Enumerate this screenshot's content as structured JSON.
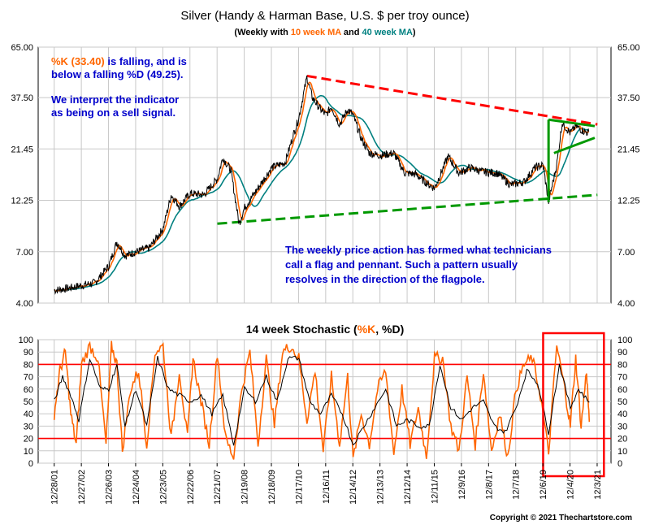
{
  "chart_data": [
    {
      "type": "line",
      "title": "Silver (Handy & Harman Base, U.S. $ per troy ounce)",
      "subtitle": {
        "prefix": "(Weekly with ",
        "ma10": "10 week MA",
        "mid": " and ",
        "ma40": "40 week MA",
        "suffix": ")"
      },
      "scale": "log",
      "ylim": [
        4.0,
        65.0
      ],
      "y_ticks": [
        "65.00",
        "37.50",
        "21.45",
        "12.25",
        "7.00",
        "4.00"
      ],
      "y_tick_values": [
        65.0,
        37.5,
        21.45,
        12.25,
        7.0,
        4.0
      ],
      "grid": true,
      "series": [
        {
          "name": "",
          "role": "price",
          "color": "#000000"
        },
        {
          "name": "10 week MA",
          "role": "ma10",
          "color": "#ff6600"
        },
        {
          "name": "40 week MA",
          "role": "ma40",
          "color": "#008080"
        }
      ],
      "price_path": [
        [
          2001.99,
          4.6
        ],
        [
          2002.5,
          4.7
        ],
        [
          2003.0,
          4.85
        ],
        [
          2003.5,
          5.0
        ],
        [
          2004.0,
          6.0
        ],
        [
          2004.3,
          7.8
        ],
        [
          2004.6,
          6.7
        ],
        [
          2005.0,
          7.0
        ],
        [
          2005.5,
          7.3
        ],
        [
          2006.0,
          9.0
        ],
        [
          2006.3,
          13.0
        ],
        [
          2006.6,
          11.5
        ],
        [
          2007.0,
          13.2
        ],
        [
          2007.5,
          13.0
        ],
        [
          2008.0,
          15.5
        ],
        [
          2008.2,
          19.5
        ],
        [
          2008.5,
          17.0
        ],
        [
          2008.8,
          9.5
        ],
        [
          2009.0,
          11.3
        ],
        [
          2009.5,
          14.0
        ],
        [
          2010.0,
          17.5
        ],
        [
          2010.5,
          18.5
        ],
        [
          2010.8,
          25.0
        ],
        [
          2011.0,
          30.0
        ],
        [
          2011.3,
          47.0
        ],
        [
          2011.5,
          37.5
        ],
        [
          2011.8,
          33.0
        ],
        [
          2012.0,
          31.0
        ],
        [
          2012.2,
          34.0
        ],
        [
          2012.5,
          28.0
        ],
        [
          2012.8,
          33.0
        ],
        [
          2013.0,
          31.0
        ],
        [
          2013.3,
          24.0
        ],
        [
          2013.6,
          20.5
        ],
        [
          2014.0,
          20.0
        ],
        [
          2014.5,
          20.5
        ],
        [
          2014.9,
          16.5
        ],
        [
          2015.3,
          16.3
        ],
        [
          2015.8,
          14.5
        ],
        [
          2016.0,
          14.0
        ],
        [
          2016.5,
          19.8
        ],
        [
          2016.9,
          16.5
        ],
        [
          2017.3,
          17.5
        ],
        [
          2017.8,
          16.7
        ],
        [
          2018.3,
          16.5
        ],
        [
          2018.8,
          14.5
        ],
        [
          2019.3,
          15.0
        ],
        [
          2019.7,
          17.5
        ],
        [
          2020.0,
          18.0
        ],
        [
          2020.2,
          12.0
        ],
        [
          2020.5,
          18.0
        ],
        [
          2020.7,
          28.5
        ],
        [
          2021.0,
          25.5
        ],
        [
          2021.2,
          27.5
        ],
        [
          2021.5,
          26.0
        ],
        [
          2021.7,
          25.5
        ]
      ],
      "trendlines": [
        {
          "name": "upper-resistance",
          "color": "#ff0000",
          "points": [
            [
              2011.3,
              47.5
            ],
            [
              2022.0,
              28.0
            ]
          ]
        },
        {
          "name": "lower-support",
          "color": "#009900",
          "points": [
            [
              2008.0,
              9.5
            ],
            [
              2022.0,
              13.0
            ]
          ]
        }
      ],
      "pattern": {
        "flagpole": [
          [
            2020.2,
            12.0
          ],
          [
            2020.2,
            29.5
          ]
        ],
        "pennant_upper": [
          [
            2020.2,
            29.5
          ],
          [
            2021.9,
            27.5
          ]
        ],
        "pennant_lower": [
          [
            2020.4,
            20.5
          ],
          [
            2021.9,
            24.2
          ]
        ]
      },
      "annotations": [
        {
          "role": "k",
          "color": "#ff6600",
          "text": "%K (33.40) "
        },
        {
          "role": "k_rest",
          "color": "#0000cc",
          "text": "is falling, and is"
        },
        {
          "role": "k2",
          "color": "#0000cc",
          "text": "below a falling %D (49.25)."
        },
        {
          "role": "i1",
          "color": "#0000cc",
          "text": "We interpret the indicator"
        },
        {
          "role": "i2",
          "color": "#0000cc",
          "text": "as being on a sell signal."
        },
        {
          "role": "f1",
          "color": "#0000cc",
          "text": "The weekly price action has formed what technicians"
        },
        {
          "role": "f2",
          "color": "#0000cc",
          "text": "call a flag and pennant.  Such a pattern usually"
        },
        {
          "role": "f3",
          "color": "#0000cc",
          "text": "resolves in the direction of the flagpole."
        }
      ]
    },
    {
      "type": "line",
      "title": {
        "prefix": "14 week Stochastic (",
        "k": "%K",
        "sep": ", ",
        "d": "%D",
        "suffix": ")"
      },
      "ylim": [
        0,
        100
      ],
      "y_ticks": [
        0,
        10,
        20,
        30,
        40,
        50,
        60,
        70,
        80,
        90,
        100
      ],
      "reference_lines": [
        80,
        20
      ],
      "series": [
        {
          "name": "%K",
          "color": "#ff6600"
        },
        {
          "name": "%D",
          "color": "#000000"
        }
      ],
      "k_path": [
        [
          2001.99,
          40
        ],
        [
          2002.2,
          75
        ],
        [
          2002.4,
          90
        ],
        [
          2002.6,
          40
        ],
        [
          2002.8,
          15
        ],
        [
          2003.0,
          80
        ],
        [
          2003.3,
          95
        ],
        [
          2003.6,
          85
        ],
        [
          2003.9,
          15
        ],
        [
          2004.1,
          95
        ],
        [
          2004.3,
          80
        ],
        [
          2004.5,
          10
        ],
        [
          2004.8,
          60
        ],
        [
          2005.1,
          75
        ],
        [
          2005.4,
          15
        ],
        [
          2005.7,
          90
        ],
        [
          2006.0,
          95
        ],
        [
          2006.3,
          20
        ],
        [
          2006.6,
          75
        ],
        [
          2006.9,
          20
        ],
        [
          2007.1,
          85
        ],
        [
          2007.4,
          50
        ],
        [
          2007.7,
          15
        ],
        [
          2008.0,
          90
        ],
        [
          2008.3,
          20
        ],
        [
          2008.6,
          5
        ],
        [
          2008.9,
          60
        ],
        [
          2009.2,
          90
        ],
        [
          2009.5,
          15
        ],
        [
          2009.8,
          85
        ],
        [
          2010.1,
          30
        ],
        [
          2010.4,
          90
        ],
        [
          2010.7,
          95
        ],
        [
          2011.0,
          85
        ],
        [
          2011.3,
          35
        ],
        [
          2011.6,
          75
        ],
        [
          2011.9,
          10
        ],
        [
          2012.2,
          70
        ],
        [
          2012.5,
          15
        ],
        [
          2012.8,
          70
        ],
        [
          2013.0,
          3
        ],
        [
          2013.3,
          40
        ],
        [
          2013.6,
          15
        ],
        [
          2013.9,
          60
        ],
        [
          2014.2,
          75
        ],
        [
          2014.5,
          8
        ],
        [
          2014.8,
          60
        ],
        [
          2015.1,
          15
        ],
        [
          2015.4,
          45
        ],
        [
          2015.7,
          5
        ],
        [
          2016.0,
          85
        ],
        [
          2016.3,
          85
        ],
        [
          2016.6,
          30
        ],
        [
          2016.9,
          10
        ],
        [
          2017.2,
          70
        ],
        [
          2017.5,
          15
        ],
        [
          2017.8,
          75
        ],
        [
          2018.1,
          10
        ],
        [
          2018.4,
          40
        ],
        [
          2018.7,
          5
        ],
        [
          2019.0,
          60
        ],
        [
          2019.3,
          80
        ],
        [
          2019.6,
          85
        ],
        [
          2019.9,
          55
        ],
        [
          2020.2,
          8
        ],
        [
          2020.5,
          95
        ],
        [
          2020.8,
          60
        ],
        [
          2021.0,
          30
        ],
        [
          2021.2,
          85
        ],
        [
          2021.4,
          30
        ],
        [
          2021.6,
          75
        ],
        [
          2021.7,
          33.4
        ]
      ],
      "d_path": [
        [
          2001.99,
          50
        ],
        [
          2002.3,
          70
        ],
        [
          2002.6,
          55
        ],
        [
          2002.9,
          35
        ],
        [
          2003.3,
          85
        ],
        [
          2003.7,
          60
        ],
        [
          2004.0,
          60
        ],
        [
          2004.3,
          80
        ],
        [
          2004.6,
          30
        ],
        [
          2005.0,
          60
        ],
        [
          2005.4,
          30
        ],
        [
          2005.8,
          85
        ],
        [
          2006.2,
          60
        ],
        [
          2006.6,
          55
        ],
        [
          2007.0,
          50
        ],
        [
          2007.4,
          55
        ],
        [
          2007.8,
          40
        ],
        [
          2008.2,
          55
        ],
        [
          2008.6,
          15
        ],
        [
          2009.0,
          60
        ],
        [
          2009.4,
          50
        ],
        [
          2009.8,
          70
        ],
        [
          2010.2,
          50
        ],
        [
          2010.6,
          85
        ],
        [
          2011.0,
          85
        ],
        [
          2011.4,
          50
        ],
        [
          2011.8,
          40
        ],
        [
          2012.2,
          55
        ],
        [
          2012.6,
          40
        ],
        [
          2013.0,
          15
        ],
        [
          2013.4,
          30
        ],
        [
          2013.8,
          45
        ],
        [
          2014.2,
          60
        ],
        [
          2014.6,
          30
        ],
        [
          2015.0,
          35
        ],
        [
          2015.4,
          30
        ],
        [
          2015.8,
          30
        ],
        [
          2016.2,
          80
        ],
        [
          2016.6,
          45
        ],
        [
          2017.0,
          35
        ],
        [
          2017.4,
          45
        ],
        [
          2017.8,
          50
        ],
        [
          2018.2,
          30
        ],
        [
          2018.6,
          25
        ],
        [
          2019.0,
          45
        ],
        [
          2019.4,
          75
        ],
        [
          2019.8,
          65
        ],
        [
          2020.2,
          25
        ],
        [
          2020.6,
          80
        ],
        [
          2021.0,
          45
        ],
        [
          2021.3,
          60
        ],
        [
          2021.7,
          49.25
        ]
      ],
      "highlight_box": {
        "x": [
          2020.0,
          2021.7
        ],
        "color": "#ff0000"
      }
    }
  ],
  "x_axis": {
    "range": [
      2001.4,
      2022.5
    ],
    "labels": [
      "12/28/01",
      "12/27/02",
      "12/26/03",
      "12/24/04",
      "12/23/05",
      "12/22/06",
      "12/21/07",
      "12/19/08",
      "12/18/09",
      "12/17/10",
      "12/16/11",
      "12/14/12",
      "12/13/13",
      "12/12/14",
      "12/11/15",
      "12/9/16",
      "12/8/17",
      "12/7/18",
      "12/6/19",
      "12/4/20",
      "12/3/21"
    ],
    "label_values": [
      2001.99,
      2002.99,
      2003.99,
      2004.99,
      2005.99,
      2006.99,
      2007.99,
      2008.99,
      2009.99,
      2010.99,
      2011.99,
      2012.99,
      2013.99,
      2014.99,
      2015.99,
      2016.99,
      2017.99,
      2018.99,
      2019.99,
      2020.99,
      2021.99
    ]
  },
  "copyright": "Copyright © 2021 Thechartstore.com"
}
